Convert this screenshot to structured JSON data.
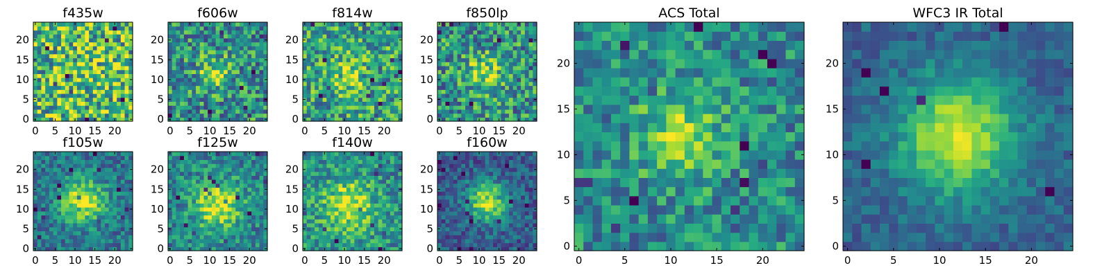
{
  "figure_title": "",
  "chart_data": [
    {
      "type": "heatmap",
      "title": "f435w",
      "grid_size": 25,
      "xticks": [
        "0",
        "5",
        "10",
        "15",
        "20"
      ],
      "yticks": [
        "0",
        "5",
        "10",
        "15",
        "20"
      ],
      "xlim": [
        0,
        25
      ],
      "ylim": [
        0,
        25
      ],
      "colormap": "viridis",
      "source_profile": {
        "peak_x": 12,
        "peak_y": 12,
        "sigma": 4.0,
        "amplitude": 0.05,
        "noise": 0.4,
        "base": 0.68
      }
    },
    {
      "type": "heatmap",
      "title": "f606w",
      "grid_size": 25,
      "xticks": [
        "0",
        "5",
        "10",
        "15",
        "20"
      ],
      "yticks": [
        "0",
        "5",
        "10",
        "15",
        "20"
      ],
      "xlim": [
        0,
        25
      ],
      "ylim": [
        0,
        25
      ],
      "colormap": "viridis",
      "source_profile": {
        "peak_x": 11,
        "peak_y": 12,
        "sigma": 3.0,
        "amplitude": 0.3,
        "noise": 0.32,
        "base": 0.5
      }
    },
    {
      "type": "heatmap",
      "title": "f814w",
      "grid_size": 25,
      "xticks": [
        "0",
        "5",
        "10",
        "15",
        "20"
      ],
      "yticks": [
        "0",
        "5",
        "10",
        "15",
        "20"
      ],
      "xlim": [
        0,
        25
      ],
      "ylim": [
        0,
        25
      ],
      "colormap": "viridis",
      "source_profile": {
        "peak_x": 11,
        "peak_y": 11,
        "sigma": 3.2,
        "amplitude": 0.3,
        "noise": 0.32,
        "base": 0.58
      }
    },
    {
      "type": "heatmap",
      "title": "f850lp",
      "grid_size": 25,
      "xticks": [
        "0",
        "5",
        "10",
        "15",
        "20"
      ],
      "yticks": [
        "0",
        "5",
        "10",
        "15",
        "20"
      ],
      "xlim": [
        0,
        25
      ],
      "ylim": [
        0,
        25
      ],
      "colormap": "viridis",
      "source_profile": {
        "peak_x": 11,
        "peak_y": 12,
        "sigma": 3.2,
        "amplitude": 0.3,
        "noise": 0.32,
        "base": 0.52
      }
    },
    {
      "type": "heatmap",
      "title": "f105w",
      "grid_size": 25,
      "xticks": [
        "0",
        "5",
        "10",
        "15",
        "20"
      ],
      "yticks": [
        "0",
        "5",
        "10",
        "15",
        "20"
      ],
      "xlim": [
        0,
        25
      ],
      "ylim": [
        0,
        25
      ],
      "colormap": "viridis",
      "source_profile": {
        "peak_x": 12,
        "peak_y": 12,
        "sigma": 3.8,
        "amplitude": 0.55,
        "noise": 0.2,
        "base": 0.4
      }
    },
    {
      "type": "heatmap",
      "title": "f125w",
      "grid_size": 25,
      "xticks": [
        "0",
        "5",
        "10",
        "15",
        "20"
      ],
      "yticks": [
        "0",
        "5",
        "10",
        "15",
        "20"
      ],
      "xlim": [
        0,
        25
      ],
      "ylim": [
        0,
        25
      ],
      "colormap": "viridis",
      "source_profile": {
        "peak_x": 12,
        "peak_y": 11,
        "sigma": 4.2,
        "amplitude": 0.5,
        "noise": 0.22,
        "base": 0.45
      }
    },
    {
      "type": "heatmap",
      "title": "f140w",
      "grid_size": 25,
      "xticks": [
        "0",
        "5",
        "10",
        "15",
        "20"
      ],
      "yticks": [
        "0",
        "5",
        "10",
        "15",
        "20"
      ],
      "xlim": [
        0,
        25
      ],
      "ylim": [
        0,
        25
      ],
      "colormap": "viridis",
      "source_profile": {
        "peak_x": 11,
        "peak_y": 11,
        "sigma": 4.5,
        "amplitude": 0.45,
        "noise": 0.24,
        "base": 0.5
      }
    },
    {
      "type": "heatmap",
      "title": "f160w",
      "grid_size": 25,
      "xticks": [
        "0",
        "5",
        "10",
        "15",
        "20"
      ],
      "yticks": [
        "0",
        "5",
        "10",
        "15",
        "20"
      ],
      "xlim": [
        0,
        25
      ],
      "ylim": [
        0,
        25
      ],
      "colormap": "viridis",
      "source_profile": {
        "peak_x": 12,
        "peak_y": 12,
        "sigma": 3.3,
        "amplitude": 0.65,
        "noise": 0.18,
        "base": 0.3
      }
    },
    {
      "type": "heatmap",
      "title": "ACS Total",
      "grid_size": 25,
      "xticks": [
        "0",
        "5",
        "10",
        "15",
        "20"
      ],
      "yticks": [
        "0",
        "5",
        "10",
        "15",
        "20"
      ],
      "xlim": [
        0,
        25
      ],
      "ylim": [
        0,
        25
      ],
      "colormap": "viridis",
      "source_profile": {
        "peak_x": 11,
        "peak_y": 12,
        "sigma": 3.2,
        "amplitude": 0.4,
        "noise": 0.24,
        "base": 0.48
      }
    },
    {
      "type": "heatmap",
      "title": "WFC3 IR Total",
      "grid_size": 25,
      "xticks": [
        "0",
        "5",
        "10",
        "15",
        "20"
      ],
      "yticks": [
        "0",
        "5",
        "10",
        "15",
        "20"
      ],
      "xlim": [
        0,
        25
      ],
      "ylim": [
        0,
        25
      ],
      "colormap": "viridis",
      "source_profile": {
        "peak_x": 12,
        "peak_y": 12,
        "sigma": 4.5,
        "amplitude": 0.62,
        "noise": 0.12,
        "base": 0.32
      }
    }
  ],
  "colormap_stops": [
    "#440154",
    "#472c7a",
    "#3b518b",
    "#2c718e",
    "#21908d",
    "#27ad81",
    "#5cc863",
    "#aadc32",
    "#fde725"
  ]
}
